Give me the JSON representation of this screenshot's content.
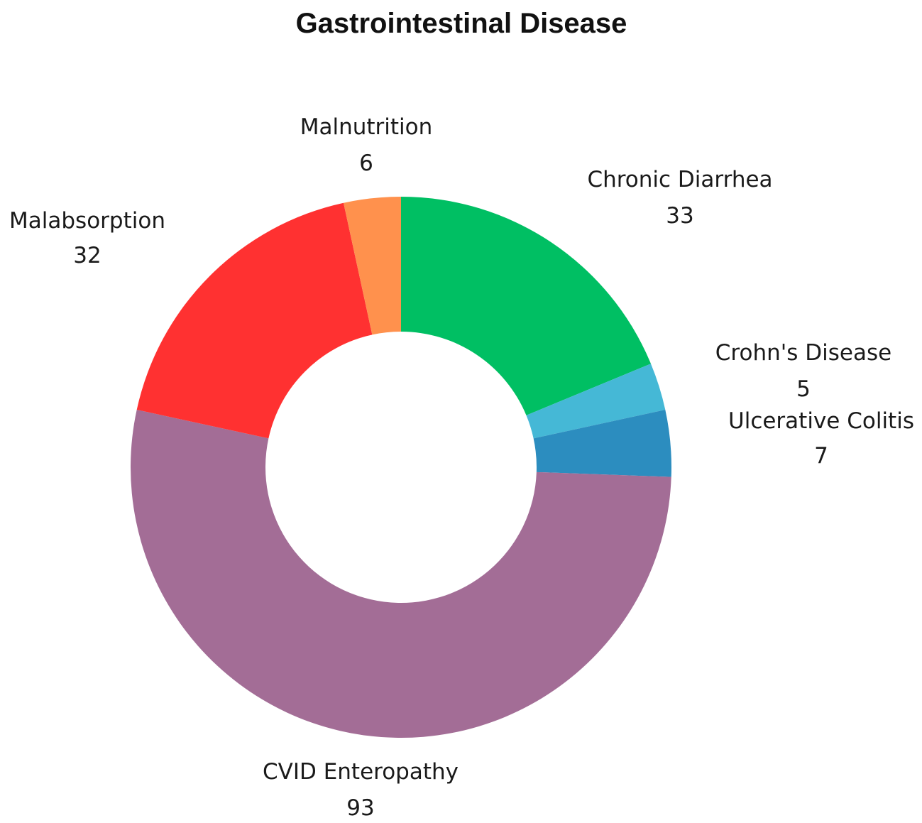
{
  "chart_data": {
    "type": "pie",
    "style": "donut",
    "title": "Gastrointestinal Disease",
    "legend": "none",
    "slices": [
      {
        "label": "Chronic Diarrhea",
        "value": 33,
        "color": "#00BF63"
      },
      {
        "label": "Crohn's Disease",
        "value": 5,
        "color": "#45B8D6"
      },
      {
        "label": "Ulcerative Colitis",
        "value": 7,
        "color": "#2C8DBF"
      },
      {
        "label": "CVID Enteropathy",
        "value": 93,
        "color": "#A36D96"
      },
      {
        "label": "Malabsorption",
        "value": 32,
        "color": "#FF3131"
      },
      {
        "label": "Malnutrition",
        "value": 6,
        "color": "#FF914D"
      }
    ]
  }
}
